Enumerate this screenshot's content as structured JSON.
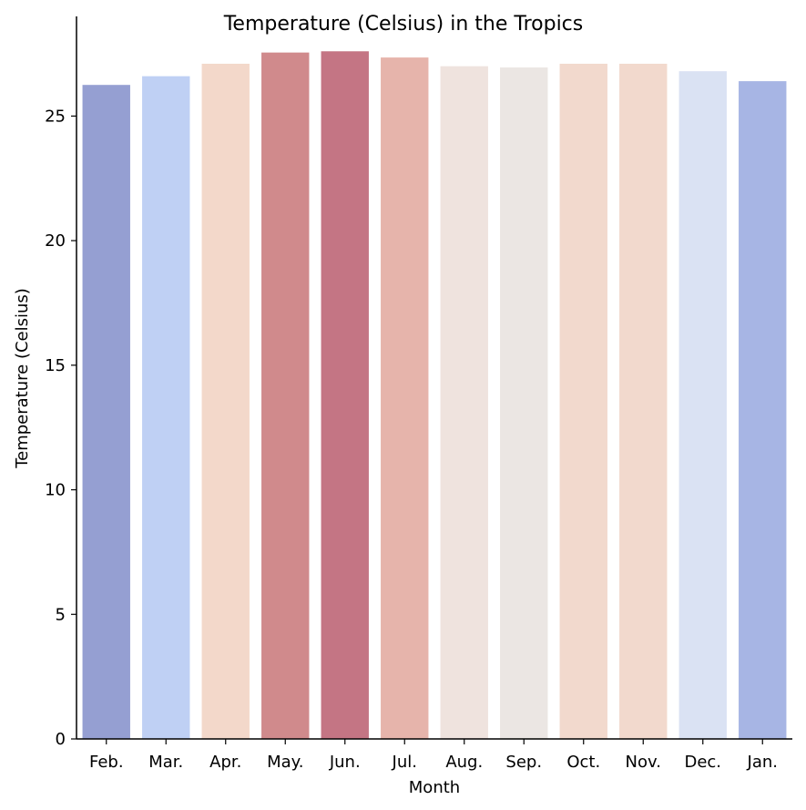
{
  "chart_data": {
    "type": "bar",
    "title": "Temperature (Celsius) in the Tropics",
    "xlabel": "Month",
    "ylabel": "Temperature (Celsius)",
    "categories": [
      "Feb.",
      "Mar.",
      "Apr.",
      "May.",
      "Jun.",
      "Jul.",
      "Aug.",
      "Sep.",
      "Oct.",
      "Nov.",
      "Dec.",
      "Jan."
    ],
    "values": [
      26.25,
      26.6,
      27.1,
      27.55,
      27.6,
      27.35,
      27.0,
      26.95,
      27.1,
      27.1,
      26.8,
      26.4
    ],
    "colors": [
      "#959fd2",
      "#bfd0f4",
      "#f3d8ca",
      "#d08a8c",
      "#c47584",
      "#e6b4ab",
      "#efe3de",
      "#ebe6e3",
      "#f2d9cd",
      "#f2d9cd",
      "#dae2f3",
      "#a7b5e4"
    ],
    "yticks": [
      0,
      5,
      10,
      15,
      20,
      25
    ],
    "ylim": [
      0,
      29
    ],
    "grid": false,
    "legend": "none"
  }
}
